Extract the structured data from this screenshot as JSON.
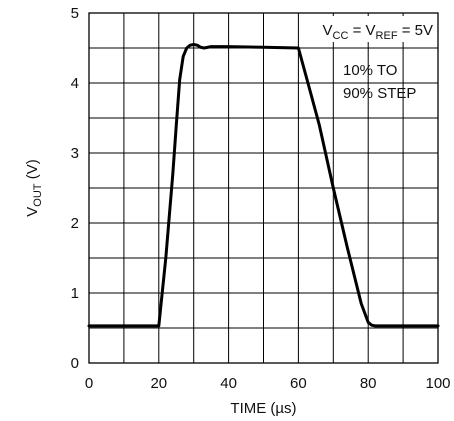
{
  "chart_data": {
    "type": "line",
    "xlabel": "TIME (µs)",
    "ylabel": {
      "base": "V",
      "sub": "OUT",
      "unit": " (V)"
    },
    "xlim": [
      0,
      100
    ],
    "ylim": [
      0,
      5
    ],
    "x_ticks": [
      "0",
      "20",
      "40",
      "60",
      "80",
      "100"
    ],
    "y_ticks": [
      "0",
      "1",
      "2",
      "3",
      "4",
      "5"
    ],
    "x_grid_step": 10,
    "y_grid_step": 0.5,
    "grid": true,
    "annotations": {
      "supply": {
        "v1": "V",
        "sub1": "CC",
        "eq1": " = V",
        "sub2": "REF",
        "eq2": " = 5V"
      },
      "step_line1": "10% TO",
      "step_line2": "90% STEP"
    },
    "series": [
      {
        "x": [
          0,
          20,
          22,
          24,
          25,
          26,
          27,
          28,
          29,
          30,
          31,
          32,
          33,
          35,
          40,
          50,
          60,
          63,
          66,
          70,
          74,
          78,
          80,
          81,
          82,
          84,
          90,
          100
        ],
        "y": [
          0.53,
          0.53,
          1.5,
          2.7,
          3.4,
          4.05,
          4.38,
          4.5,
          4.54,
          4.55,
          4.54,
          4.51,
          4.5,
          4.52,
          4.52,
          4.51,
          4.5,
          3.95,
          3.4,
          2.5,
          1.65,
          0.85,
          0.58,
          0.54,
          0.53,
          0.53,
          0.53,
          0.53
        ]
      }
    ],
    "line_color": "#000000"
  }
}
